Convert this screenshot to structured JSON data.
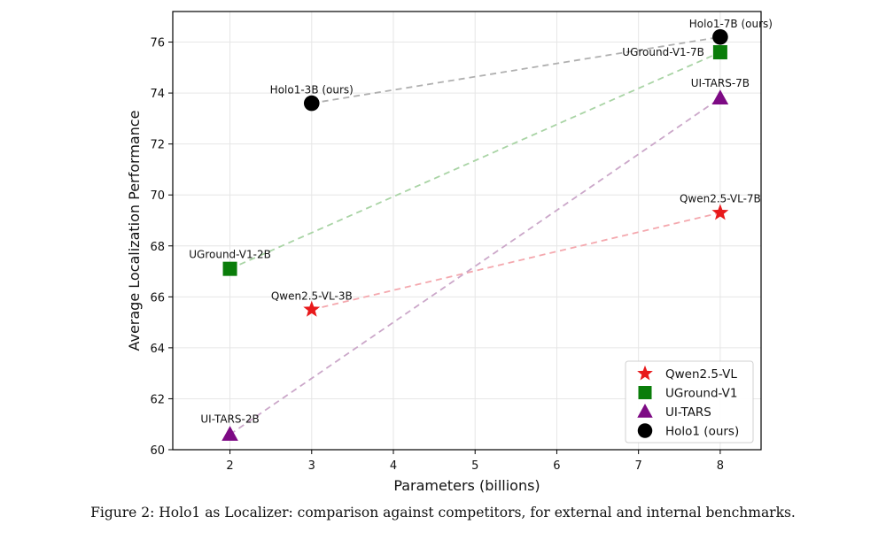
{
  "chart_data": {
    "type": "scatter",
    "title": "",
    "xlabel": "Parameters (billions)",
    "ylabel": "Average Localization Performance",
    "xlim": [
      1.3,
      8.5
    ],
    "ylim": [
      60,
      77.2
    ],
    "xticks": [
      2,
      3,
      4,
      5,
      6,
      7,
      8
    ],
    "yticks": [
      60,
      62,
      64,
      66,
      68,
      70,
      72,
      74,
      76
    ],
    "grid": true,
    "legend_position": "bottom-right",
    "series": [
      {
        "name": "Qwen2.5-VL",
        "marker": "star",
        "color": "#e8191b",
        "line_color": "#f4a8ae",
        "points": [
          {
            "x": 3,
            "y": 65.5,
            "label": "Qwen2.5-VL-3B"
          },
          {
            "x": 8,
            "y": 69.3,
            "label": "Qwen2.5-VL-7B"
          }
        ]
      },
      {
        "name": "UGround-V1",
        "marker": "square",
        "color": "#0a7d0a",
        "line_color": "#a9d4a5",
        "points": [
          {
            "x": 2,
            "y": 67.1,
            "label": "UGround-V1-2B"
          },
          {
            "x": 8,
            "y": 75.6,
            "label": "UGround-V1-7B"
          }
        ]
      },
      {
        "name": "UI-TARS",
        "marker": "triangle",
        "color": "#7d0a84",
        "line_color": "#cba7c9",
        "points": [
          {
            "x": 2,
            "y": 60.6,
            "label": "UI-TARS-2B"
          },
          {
            "x": 8,
            "y": 73.8,
            "label": "UI-TARS-7B"
          }
        ]
      },
      {
        "name": "Holo1 (ours)",
        "marker": "circle",
        "color": "#000000",
        "line_color": "#b0b0b0",
        "points": [
          {
            "x": 3,
            "y": 73.6,
            "label": "Holo1-3B (ours)"
          },
          {
            "x": 8,
            "y": 76.2,
            "label": "Holo1-7B (ours)"
          }
        ]
      }
    ]
  },
  "caption": "Figure 2: Holo1 as Localizer: comparison against competitors, for external and internal benchmarks."
}
